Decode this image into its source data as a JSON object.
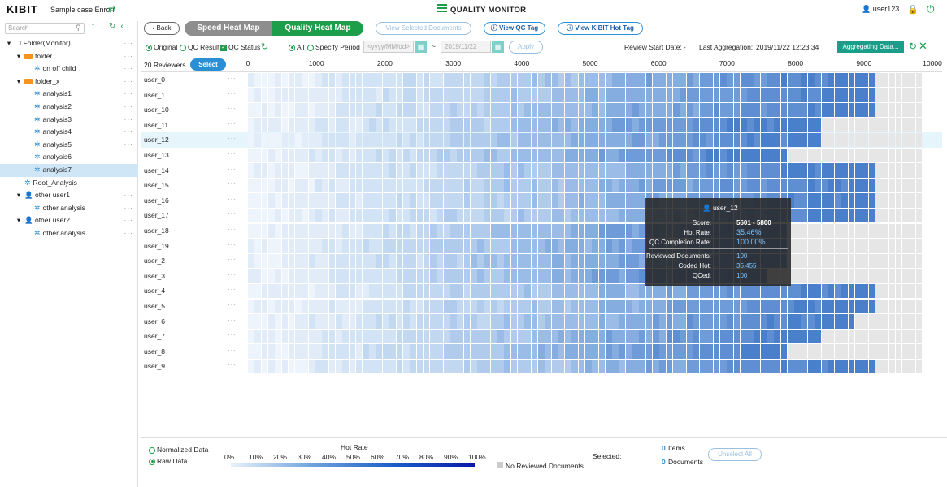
{
  "topbar": {
    "logo": "KIBIT",
    "case_name": "Sample case Enron",
    "title": "QUALITY MONITOR",
    "user": "user123"
  },
  "sidebar": {
    "search_placeholder": "Search",
    "tree": [
      {
        "label": "Folder(Monitor)",
        "type": "monitor",
        "indent": 0
      },
      {
        "label": "folder",
        "type": "folder",
        "indent": 1
      },
      {
        "label": "on off child",
        "type": "analysis",
        "indent": 2
      },
      {
        "label": "folder_x",
        "type": "folder",
        "indent": 1
      },
      {
        "label": "analysis1",
        "type": "analysis",
        "indent": 2
      },
      {
        "label": "analysis2",
        "type": "analysis",
        "indent": 2
      },
      {
        "label": "analysis3",
        "type": "analysis",
        "indent": 2
      },
      {
        "label": "analysis4",
        "type": "analysis",
        "indent": 2
      },
      {
        "label": "analysis5",
        "type": "analysis",
        "indent": 2
      },
      {
        "label": "analysis6",
        "type": "analysis",
        "indent": 2
      },
      {
        "label": "analysis7",
        "type": "analysis",
        "indent": 2,
        "selected": true
      },
      {
        "label": "Root_Analysis",
        "type": "analysis",
        "indent": 1
      },
      {
        "label": "other user1",
        "type": "user",
        "indent": 1
      },
      {
        "label": "other analysis",
        "type": "analysis",
        "indent": 2
      },
      {
        "label": "other user2",
        "type": "user",
        "indent": 1
      },
      {
        "label": "other analysis",
        "type": "analysis",
        "indent": 2
      }
    ]
  },
  "toolbar": {
    "back": "Back",
    "speed_tab": "Speed Heat Map",
    "quality_tab": "Quality Heat Map",
    "view_selected": "View Selected Documents",
    "view_qc": "View QC Tag",
    "view_kibit": "View KIBIT Hot Tag"
  },
  "filters": {
    "original": "Original",
    "qc_result": "QC Result",
    "qc_status": "QC Status",
    "all": "All",
    "specify_period": "Specify Period",
    "date_from_placeholder": "<yyyy/MM/dd>",
    "date_to": "2019/11/22",
    "apply": "Apply",
    "review_start_label": "Review Start Date:",
    "review_start_value": "-",
    "last_agg_label": "Last Aggregation:",
    "last_agg_value": "2019/11/22 12:23:34",
    "aggregating": "Aggregating Data..."
  },
  "grid": {
    "reviewer_count": "20 Reviewers",
    "select": "Select",
    "axis_labels": [
      "0",
      "1000",
      "2000",
      "3000",
      "4000",
      "5000",
      "6000",
      "7000",
      "8000",
      "9000",
      "10000"
    ],
    "users": [
      "user_0",
      "user_1",
      "user_10",
      "user_11",
      "user_12",
      "user_13",
      "user_14",
      "user_15",
      "user_16",
      "user_17",
      "user_18",
      "user_19",
      "user_2",
      "user_3",
      "user_4",
      "user_5",
      "user_6",
      "user_7",
      "user_8",
      "user_9"
    ]
  },
  "tooltip": {
    "user": "user_12",
    "score_label": "Score:",
    "score": "5601 - 5800",
    "hot_rate_label": "Hot Rate:",
    "hot_rate": "35.46%",
    "qc_label": "QC Completion Rate:",
    "qc": "100.00%",
    "reviewed_label": "Reviewed Documents:",
    "reviewed": "100",
    "coded_label": "Coded Hot:",
    "coded": "35.455",
    "qced_label": "QCed:",
    "qced": "100"
  },
  "legend": {
    "normalized": "Normalized Data",
    "raw": "Raw Data",
    "hot_rate": "Hot Rate",
    "ticks": [
      "0%",
      "10%",
      "20%",
      "30%",
      "40%",
      "50%",
      "60%",
      "70%",
      "80%",
      "90%",
      "100%"
    ],
    "no_reviewed": "No Reviewed Documents",
    "selected_label": "Selected:",
    "items_count": "0",
    "items_label": "Items",
    "docs_count": "0",
    "docs_label": "Documents",
    "unselect_all": "Unselect All"
  },
  "colors": {
    "accent": "#1e9e4a",
    "blue": "#2b8fd6"
  }
}
